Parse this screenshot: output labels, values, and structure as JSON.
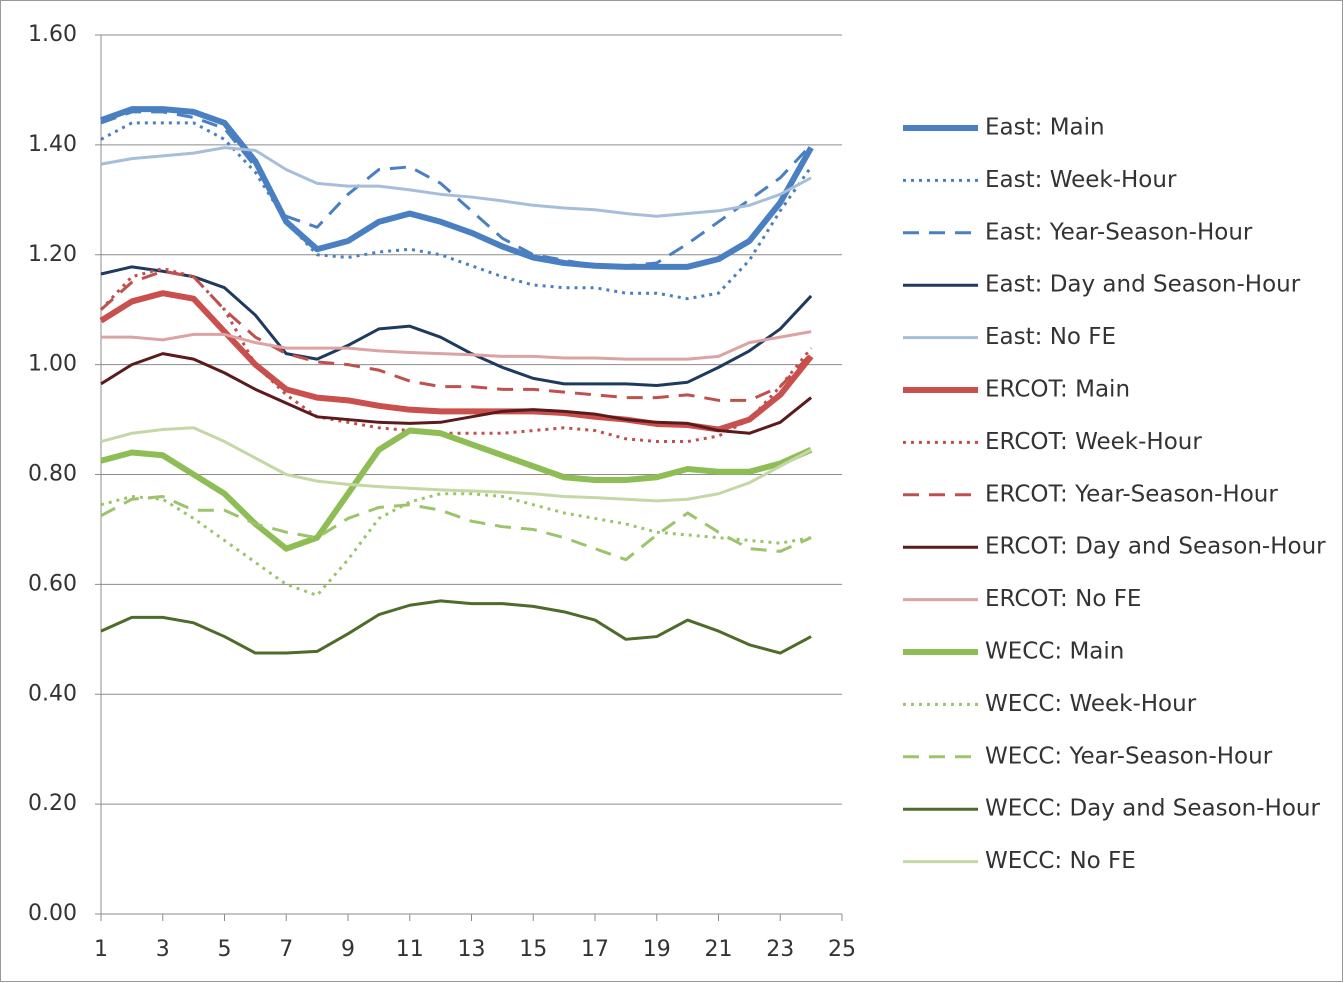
{
  "chart_data": {
    "type": "line",
    "x": [
      1,
      2,
      3,
      4,
      5,
      6,
      7,
      8,
      9,
      10,
      11,
      12,
      13,
      14,
      15,
      16,
      17,
      18,
      19,
      20,
      21,
      22,
      23,
      24
    ],
    "xlim": [
      1,
      25
    ],
    "xticks": [
      1,
      3,
      5,
      7,
      9,
      11,
      13,
      15,
      17,
      19,
      21,
      23,
      25
    ],
    "ylim": [
      0,
      1.6
    ],
    "yticks": [
      {
        "value": 0,
        "label": "0.00"
      },
      {
        "value": 0.2,
        "label": "0.20"
      },
      {
        "value": 0.4,
        "label": "0.40"
      },
      {
        "value": 0.6,
        "label": "0.60"
      },
      {
        "value": 0.8,
        "label": "0.80"
      },
      {
        "value": 1.0,
        "label": "1.00"
      },
      {
        "value": 1.2,
        "label": "1.20"
      },
      {
        "value": 1.4,
        "label": "1.40"
      },
      {
        "value": 1.6,
        "label": "1.60"
      }
    ],
    "grid": true,
    "legend": "right",
    "series": [
      {
        "name": "East: Main",
        "color": "#4a7fc1",
        "style": "thick",
        "values": [
          1.445,
          1.465,
          1.465,
          1.46,
          1.44,
          1.37,
          1.26,
          1.21,
          1.225,
          1.26,
          1.275,
          1.26,
          1.24,
          1.215,
          1.195,
          1.185,
          1.18,
          1.178,
          1.178,
          1.178,
          1.192,
          1.225,
          1.295,
          1.395
        ]
      },
      {
        "name": "East: Week-Hour",
        "color": "#4a7fc1",
        "style": "dotted",
        "values": [
          1.41,
          1.44,
          1.44,
          1.44,
          1.41,
          1.35,
          1.26,
          1.2,
          1.195,
          1.205,
          1.21,
          1.2,
          1.18,
          1.16,
          1.145,
          1.14,
          1.14,
          1.13,
          1.13,
          1.12,
          1.13,
          1.19,
          1.28,
          1.36
        ]
      },
      {
        "name": "East: Year-Season-Hour",
        "color": "#4a7fc1",
        "style": "dashed",
        "values": [
          1.44,
          1.46,
          1.46,
          1.45,
          1.43,
          1.36,
          1.27,
          1.25,
          1.31,
          1.355,
          1.36,
          1.33,
          1.28,
          1.23,
          1.2,
          1.19,
          1.18,
          1.18,
          1.185,
          1.22,
          1.26,
          1.3,
          1.34,
          1.4
        ]
      },
      {
        "name": "East: Day and Season-Hour",
        "color": "#1f3a5f",
        "style": "solid",
        "values": [
          1.165,
          1.178,
          1.17,
          1.16,
          1.14,
          1.09,
          1.02,
          1.01,
          1.035,
          1.065,
          1.07,
          1.05,
          1.02,
          0.995,
          0.975,
          0.965,
          0.965,
          0.965,
          0.962,
          0.968,
          0.995,
          1.025,
          1.065,
          1.125
        ]
      },
      {
        "name": "East: No FE",
        "color": "#a7bedb",
        "style": "solid",
        "values": [
          1.365,
          1.375,
          1.38,
          1.385,
          1.395,
          1.39,
          1.355,
          1.33,
          1.325,
          1.325,
          1.318,
          1.31,
          1.305,
          1.298,
          1.29,
          1.285,
          1.282,
          1.275,
          1.27,
          1.275,
          1.28,
          1.29,
          1.31,
          1.34
        ]
      },
      {
        "name": "ERCOT: Main",
        "color": "#c9504d",
        "style": "thick",
        "values": [
          1.08,
          1.115,
          1.13,
          1.12,
          1.06,
          1.0,
          0.955,
          0.94,
          0.935,
          0.925,
          0.918,
          0.915,
          0.915,
          0.915,
          0.915,
          0.912,
          0.905,
          0.9,
          0.892,
          0.89,
          0.882,
          0.9,
          0.945,
          1.015
        ]
      },
      {
        "name": "ERCOT: Week-Hour",
        "color": "#c0504d",
        "style": "dotted",
        "values": [
          1.1,
          1.16,
          1.175,
          1.16,
          1.1,
          1.0,
          0.945,
          0.905,
          0.895,
          0.885,
          0.88,
          0.875,
          0.875,
          0.875,
          0.88,
          0.885,
          0.88,
          0.865,
          0.86,
          0.86,
          0.87,
          0.9,
          0.96,
          1.03
        ]
      },
      {
        "name": "ERCOT: Year-Season-Hour",
        "color": "#c0504d",
        "style": "dashed",
        "values": [
          1.1,
          1.15,
          1.17,
          1.16,
          1.1,
          1.05,
          1.02,
          1.005,
          1.0,
          0.99,
          0.97,
          0.96,
          0.96,
          0.955,
          0.955,
          0.95,
          0.945,
          0.94,
          0.94,
          0.945,
          0.935,
          0.935,
          0.96,
          1.02
        ]
      },
      {
        "name": "ERCOT: Day and Season-Hour",
        "color": "#5b1b1b",
        "style": "solid",
        "values": [
          0.965,
          1.0,
          1.02,
          1.01,
          0.985,
          0.955,
          0.93,
          0.905,
          0.9,
          0.895,
          0.893,
          0.895,
          0.905,
          0.915,
          0.918,
          0.915,
          0.91,
          0.9,
          0.895,
          0.893,
          0.88,
          0.875,
          0.895,
          0.94
        ]
      },
      {
        "name": "ERCOT: No FE",
        "color": "#dba3a2",
        "style": "solid",
        "values": [
          1.05,
          1.05,
          1.045,
          1.055,
          1.055,
          1.04,
          1.03,
          1.03,
          1.03,
          1.025,
          1.022,
          1.02,
          1.018,
          1.015,
          1.015,
          1.012,
          1.012,
          1.01,
          1.01,
          1.01,
          1.015,
          1.04,
          1.05,
          1.06
        ]
      },
      {
        "name": "WECC: Main",
        "color": "#8fbd55",
        "style": "thick",
        "values": [
          0.825,
          0.84,
          0.835,
          0.8,
          0.765,
          0.71,
          0.665,
          0.685,
          0.765,
          0.845,
          0.88,
          0.875,
          0.855,
          0.835,
          0.815,
          0.795,
          0.79,
          0.79,
          0.795,
          0.81,
          0.805,
          0.805,
          0.82,
          0.845
        ]
      },
      {
        "name": "WECC: Week-Hour",
        "color": "#9bc46b",
        "style": "dotted",
        "values": [
          0.745,
          0.76,
          0.755,
          0.72,
          0.68,
          0.64,
          0.6,
          0.58,
          0.645,
          0.72,
          0.75,
          0.765,
          0.765,
          0.76,
          0.745,
          0.73,
          0.72,
          0.71,
          0.695,
          0.69,
          0.685,
          0.68,
          0.675,
          0.685
        ]
      },
      {
        "name": "WECC: Year-Season-Hour",
        "color": "#9bc46b",
        "style": "dashed",
        "values": [
          0.725,
          0.755,
          0.76,
          0.735,
          0.735,
          0.71,
          0.695,
          0.685,
          0.72,
          0.74,
          0.745,
          0.735,
          0.715,
          0.705,
          0.7,
          0.685,
          0.665,
          0.645,
          0.69,
          0.73,
          0.695,
          0.665,
          0.66,
          0.685
        ]
      },
      {
        "name": "WECC: Day and Season-Hour",
        "color": "#4e6b2a",
        "style": "solid",
        "values": [
          0.515,
          0.54,
          0.54,
          0.53,
          0.505,
          0.475,
          0.475,
          0.478,
          0.51,
          0.545,
          0.562,
          0.57,
          0.565,
          0.565,
          0.56,
          0.55,
          0.535,
          0.5,
          0.505,
          0.535,
          0.515,
          0.49,
          0.475,
          0.505
        ]
      },
      {
        "name": "WECC: No FE",
        "color": "#c3d8a5",
        "style": "solid",
        "values": [
          0.86,
          0.875,
          0.882,
          0.885,
          0.86,
          0.83,
          0.8,
          0.788,
          0.782,
          0.778,
          0.775,
          0.772,
          0.77,
          0.768,
          0.765,
          0.76,
          0.758,
          0.755,
          0.752,
          0.755,
          0.765,
          0.785,
          0.815,
          0.845
        ]
      }
    ]
  }
}
